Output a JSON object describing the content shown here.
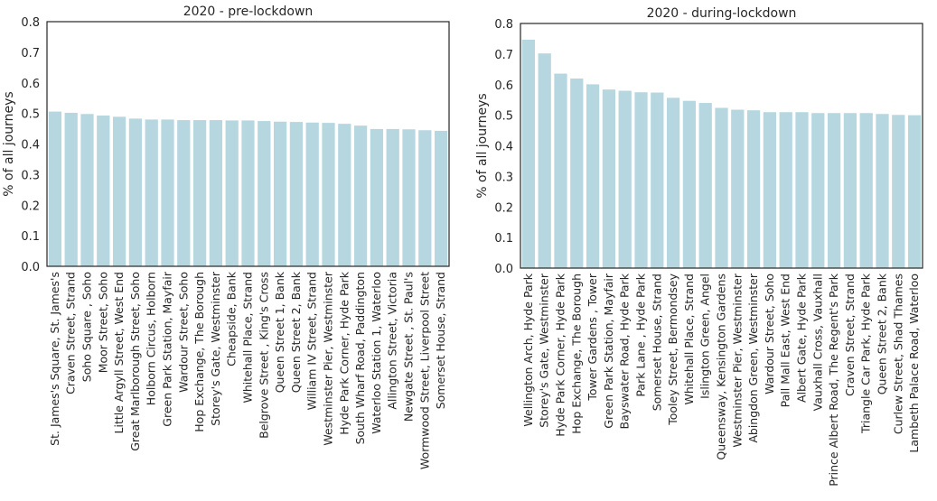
{
  "chart_data": [
    {
      "type": "bar",
      "title": "2020 - pre-lockdown",
      "xlabel": "",
      "ylabel": "% of all journeys",
      "ylim": [
        0,
        0.8
      ],
      "yticks": [
        "0.0",
        "0.1",
        "0.2",
        "0.3",
        "0.4",
        "0.5",
        "0.6",
        "0.7",
        "0.8"
      ],
      "bar_color": "#b6d6e0",
      "categories": [
        "St. James's Square, St. James's",
        "Craven Street, Strand",
        "Soho Square , Soho",
        "Moor Street, Soho",
        "Little Argyll Street, West End",
        "Great Marlborough Street, Soho",
        "Holborn Circus, Holborn",
        "Green Park Station, Mayfair",
        "Wardour Street, Soho",
        "Hop Exchange, The Borough",
        "Storey's Gate, Westminster",
        "Cheapside, Bank",
        "Whitehall Place, Strand",
        "Belgrove Street , King's Cross",
        "Queen Street 1, Bank",
        "Queen Street 2, Bank",
        "William IV Street, Strand",
        "Westminster Pier, Westminster",
        "Hyde Park Corner, Hyde Park",
        "South Wharf Road, Paddington",
        "Waterloo Station 1, Waterloo",
        "Allington Street, Victoria",
        "Newgate Street , St. Paul's",
        "Wormwood Street, Liverpool Street",
        "Somerset House, Strand"
      ],
      "values": [
        0.506,
        0.502,
        0.498,
        0.493,
        0.489,
        0.483,
        0.48,
        0.48,
        0.478,
        0.478,
        0.478,
        0.477,
        0.477,
        0.475,
        0.473,
        0.472,
        0.47,
        0.469,
        0.466,
        0.46,
        0.449,
        0.449,
        0.448,
        0.445,
        0.443
      ]
    },
    {
      "type": "bar",
      "title": "2020 - during-lockdown",
      "xlabel": "",
      "ylabel": "% of all journeys",
      "ylim": [
        0,
        0.8
      ],
      "yticks": [
        "0.0",
        "0.1",
        "0.2",
        "0.3",
        "0.4",
        "0.5",
        "0.6",
        "0.7",
        "0.8"
      ],
      "bar_color": "#b6d6e0",
      "categories": [
        "Wellington Arch, Hyde Park",
        "Storey's Gate, Westminster",
        "Hyde Park Corner, Hyde Park",
        "Hop Exchange, The Borough",
        "Tower Gardens , Tower",
        "Green Park Station, Mayfair",
        "Bayswater Road, Hyde Park",
        "Park Lane , Hyde Park",
        "Somerset House, Strand",
        "Tooley Street, Bermondsey",
        "Whitehall Place, Strand",
        "Islington Green, Angel",
        "Queensway, Kensington Gardens",
        "Westminster Pier, Westminster",
        "Abingdon Green, Westminster",
        "Wardour Street, Soho",
        "Pall Mall East, West End",
        "Albert Gate, Hyde Park",
        "Vauxhall Cross, Vauxhall",
        "Prince Albert Road, The Regent's Park",
        "Craven Street, Strand",
        "Triangle Car Park, Hyde Park",
        "Queen Street 2, Bank",
        "Curlew Street, Shad Thames",
        "Lambeth Palace Road, Waterloo"
      ],
      "values": [
        0.747,
        0.702,
        0.636,
        0.62,
        0.601,
        0.584,
        0.58,
        0.575,
        0.574,
        0.557,
        0.547,
        0.54,
        0.524,
        0.518,
        0.516,
        0.51,
        0.51,
        0.51,
        0.507,
        0.507,
        0.507,
        0.507,
        0.504,
        0.501,
        0.5
      ]
    }
  ]
}
